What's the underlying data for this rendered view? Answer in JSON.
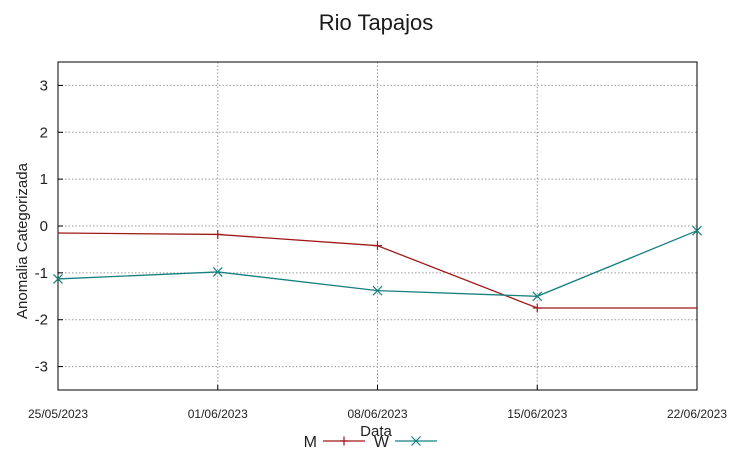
{
  "chart_data": {
    "type": "line",
    "title": "Rio Tapajos",
    "xlabel": "Data",
    "ylabel": "Anomalia Categorizada",
    "categories": [
      "25/05/2023",
      "01/06/2023",
      "08/06/2023",
      "15/06/2023",
      "22/06/2023"
    ],
    "ylim": [
      -3.5,
      3.5
    ],
    "yticks": [
      3,
      2,
      1,
      0,
      -1,
      -2,
      -3
    ],
    "grid": true,
    "legend_position": "bottom-center",
    "series": [
      {
        "name": "M",
        "color": "#a01818",
        "marker": "plus",
        "values": [
          -0.15,
          -0.18,
          -0.42,
          -1.75,
          -1.75
        ],
        "marked": [
          false,
          true,
          true,
          true,
          false
        ]
      },
      {
        "name": "W",
        "color": "#168080",
        "marker": "cross",
        "values": [
          -1.13,
          -0.98,
          -1.38,
          -1.5,
          -0.1
        ],
        "marked": [
          true,
          true,
          true,
          true,
          true
        ]
      }
    ]
  }
}
